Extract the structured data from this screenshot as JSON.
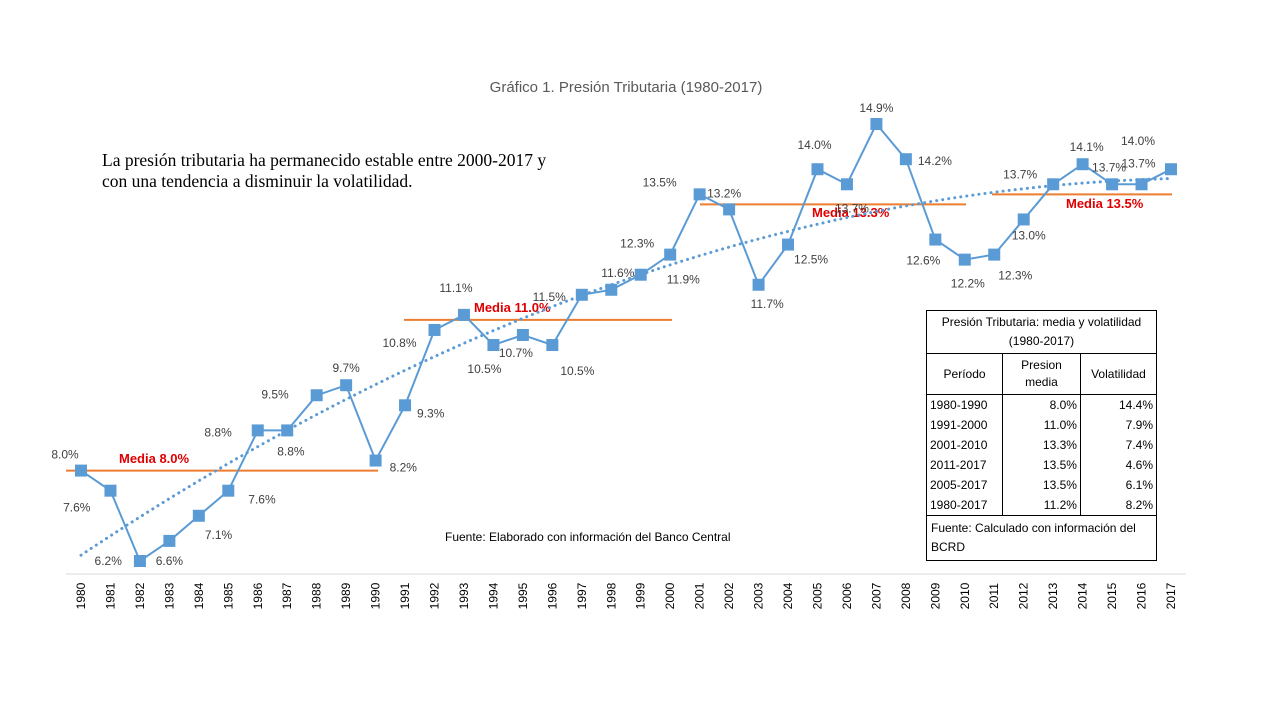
{
  "chart_data": {
    "type": "line",
    "title": "Gráfico 1. Presión Tributaria (1980-2017)",
    "categories": [
      "1980",
      "1981",
      "1982",
      "1983",
      "1984",
      "1985",
      "1986",
      "1987",
      "1988",
      "1989",
      "1990",
      "1991",
      "1992",
      "1993",
      "1994",
      "1995",
      "1996",
      "1997",
      "1998",
      "1999",
      "2000",
      "2001",
      "2002",
      "2003",
      "2004",
      "2005",
      "2006",
      "2007",
      "2008",
      "2009",
      "2010",
      "2011",
      "2012",
      "2013",
      "2014",
      "2015",
      "2016",
      "2017"
    ],
    "series": [
      {
        "name": "Presión Tributaria",
        "values": [
          8.0,
          7.6,
          6.2,
          6.6,
          7.1,
          7.6,
          8.8,
          8.8,
          9.5,
          9.7,
          8.2,
          9.3,
          10.8,
          11.1,
          10.5,
          10.7,
          10.5,
          11.5,
          11.6,
          11.9,
          12.3,
          13.5,
          13.2,
          11.7,
          12.5,
          14.0,
          13.7,
          14.9,
          14.2,
          12.6,
          12.2,
          12.3,
          13.0,
          13.7,
          14.1,
          13.7,
          13.7,
          14.0
        ],
        "labels": [
          "8.0%",
          "7.6%",
          "6.2%",
          "6.6%",
          "7.1%",
          "7.6%",
          "8.8%",
          "8.8%",
          "9.5%",
          "9.7%",
          "8.2%",
          "9.3%",
          "10.8%",
          "11.1%",
          "10.5%",
          "10.7%",
          "10.5%",
          "11.5%",
          "11.6%",
          "11.9%",
          "12.3%",
          "13.5%",
          "13.2%",
          "11.7%",
          "12.5%",
          "14.0%",
          "13.7%",
          "14.9%",
          "14.2%",
          "12.6%",
          "12.2%",
          "12.3%",
          "13.0%",
          "13.7%",
          "14.1%",
          "13.7%",
          "13.7%",
          "14.0%"
        ],
        "color": "#5b9bd5",
        "marker": "square"
      }
    ],
    "trendline": {
      "type": "polynomial",
      "style": "dotted",
      "color": "#5b9bd5"
    },
    "means": [
      {
        "label": "Media 8.0%",
        "value": 8.0,
        "from": "1980",
        "to": "1990"
      },
      {
        "label": "Media 11.0%",
        "value": 11.0,
        "from": "1991",
        "to": "2000"
      },
      {
        "label": "Media 13.3%",
        "value": 13.3,
        "from": "2001",
        "to": "2010"
      },
      {
        "label": "Media 13.5%",
        "value": 13.5,
        "from": "2011",
        "to": "2017"
      }
    ],
    "mean_line_color": "#ed7d31",
    "mean_label_color": "#e00000",
    "ylim": [
      5.8,
      15.3
    ],
    "xlabel": "",
    "ylabel": "",
    "grid": false
  },
  "annotation": "La presión tributaria  ha permanecido estable entre 2000-2017 y con una tendencia a disminuir  la volatilidad.",
  "source_note": "Fuente: Elaborado con información del Banco Central",
  "summary_table": {
    "caption": "Presión Tributaria: media y volatilidad (1980-2017)",
    "headers": [
      "Período",
      "Presion media",
      "Volatilidad"
    ],
    "rows": [
      [
        "1980-1990",
        "8.0%",
        "14.4%"
      ],
      [
        "1991-2000",
        "11.0%",
        "7.9%"
      ],
      [
        "2001-2010",
        "13.3%",
        "7.4%"
      ],
      [
        "2011-2017",
        "13.5%",
        "4.6%"
      ],
      [
        "2005-2017",
        "13.5%",
        "6.1%"
      ],
      [
        "1980-2017",
        "11.2%",
        "8.2%"
      ]
    ],
    "source": "Fuente: Calculado con información del BCRD"
  }
}
